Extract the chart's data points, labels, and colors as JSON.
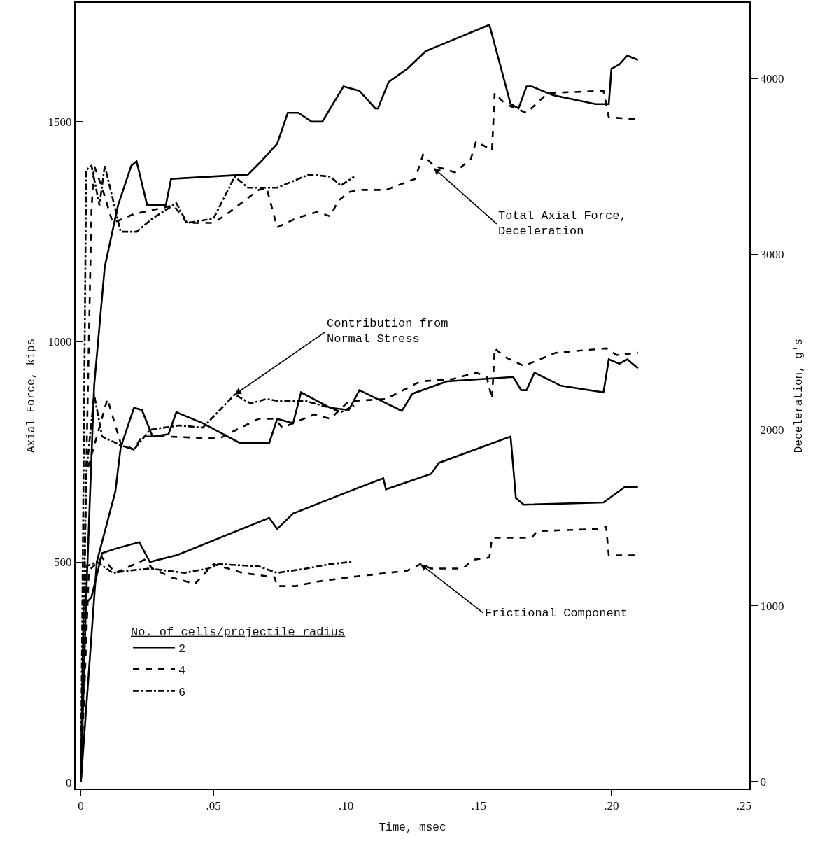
{
  "chart_data": {
    "type": "line",
    "xlabel": "Time, msec",
    "ylabel": "Axial Force, kips",
    "y2label": "Deceleration, g's",
    "xlim": [
      -0.002,
      0.252
    ],
    "xticks": [
      0,
      {
        "value": 0.05,
        "label": ".05"
      },
      {
        "value": 0.1,
        "label": ".10"
      },
      {
        "value": 0.15,
        "label": ".15"
      },
      {
        "value": 0.2,
        "label": ".20"
      },
      {
        "value": 0.25,
        "label": ".25"
      }
    ],
    "ylim": [
      -15,
      1770
    ],
    "yticks": [
      0,
      500,
      1000,
      1500
    ],
    "y2lim": [
      -40,
      4430
    ],
    "y2ticks": [
      0,
      1000,
      2000,
      3000,
      4000
    ],
    "legend": "bottom left",
    "legend_title": "No. of cells/projectile radius",
    "series": [
      {
        "name": "2",
        "color": "#000000",
        "line_style": "solid",
        "x": [
          0,
          0.002,
          0.005,
          0.009,
          0.014,
          0.019,
          0.021,
          0.025,
          0.032,
          0.034,
          0.063,
          0.068,
          0.074,
          0.078,
          0.082,
          0.087,
          0.091,
          0.099,
          0.105,
          0.111,
          0.112,
          0.116,
          0.123,
          0.13,
          0.134,
          0.142,
          0.15,
          0.154,
          0.162,
          0.165,
          0.168,
          0.17,
          0.178,
          0.194,
          0.199,
          0.2,
          0.203,
          0.206,
          0.21
        ],
        "values": [
          0,
          420,
          900,
          1170,
          1310,
          1400,
          1410,
          1310,
          1310,
          1370,
          1380,
          1410,
          1450,
          1520,
          1520,
          1500,
          1500,
          1580,
          1570,
          1530,
          1530,
          1590,
          1620,
          1660,
          1670,
          1690,
          1710,
          1720,
          1540,
          1530,
          1580,
          1580,
          1560,
          1540,
          1540,
          1620,
          1630,
          1650,
          1640
        ]
      },
      {
        "name": "4",
        "color": "#000000",
        "line_style": "dashed",
        "x": [
          0,
          0.002,
          0.004,
          0.005,
          0.008,
          0.012,
          0.02,
          0.035,
          0.04,
          0.05,
          0.055,
          0.067,
          0.07,
          0.074,
          0.081,
          0.089,
          0.094,
          0.097,
          0.101,
          0.105,
          0.115,
          0.126,
          0.129,
          0.133,
          0.141,
          0.147,
          0.149,
          0.155,
          0.156,
          0.16,
          0.168,
          0.176,
          0.197,
          0.199,
          0.21
        ],
        "values": [
          0,
          700,
          1300,
          1400,
          1350,
          1270,
          1290,
          1310,
          1270,
          1270,
          1290,
          1345,
          1350,
          1260,
          1280,
          1295,
          1285,
          1320,
          1340,
          1345,
          1345,
          1370,
          1425,
          1400,
          1385,
          1415,
          1455,
          1435,
          1565,
          1540,
          1520,
          1565,
          1570,
          1510,
          1505
        ]
      },
      {
        "name": "6",
        "color": "#000000",
        "line_style": "dashdot",
        "x": [
          0,
          0.001,
          0.002,
          0.004,
          0.007,
          0.009,
          0.015,
          0.021,
          0.027,
          0.036,
          0.04,
          0.05,
          0.058,
          0.063,
          0.074,
          0.086,
          0.094,
          0.098,
          0.103
        ],
        "values": [
          0,
          700,
          1390,
          1400,
          1310,
          1400,
          1250,
          1250,
          1280,
          1315,
          1270,
          1280,
          1375,
          1350,
          1350,
          1380,
          1375,
          1355,
          1375
        ]
      },
      {
        "color": "#000000",
        "line_style": "solid",
        "x": [
          0,
          0.006,
          0.013,
          0.015,
          0.02,
          0.023,
          0.027,
          0.033,
          0.036,
          0.046,
          0.06,
          0.071,
          0.074,
          0.08,
          0.083,
          0.094,
          0.101,
          0.105,
          0.121,
          0.125,
          0.138,
          0.163,
          0.166,
          0.168,
          0.171,
          0.181,
          0.197,
          0.199,
          0.203,
          0.206,
          0.21
        ],
        "values": [
          0,
          500,
          660,
          760,
          850,
          845,
          785,
          790,
          840,
          815,
          770,
          770,
          825,
          815,
          885,
          850,
          845,
          890,
          843,
          882,
          910,
          920,
          890,
          890,
          930,
          900,
          885,
          960,
          950,
          960,
          940
        ]
      },
      {
        "color": "#000000",
        "line_style": "dashed",
        "x": [
          0,
          0.002,
          0.01,
          0.015,
          0.02,
          0.023,
          0.032,
          0.052,
          0.067,
          0.073,
          0.076,
          0.088,
          0.094,
          0.101,
          0.115,
          0.128,
          0.14,
          0.149,
          0.153,
          0.155,
          0.156,
          0.16,
          0.167,
          0.179,
          0.198,
          0.202,
          0.21
        ],
        "values": [
          0,
          700,
          870,
          770,
          755,
          785,
          785,
          780,
          825,
          825,
          805,
          835,
          825,
          865,
          870,
          910,
          915,
          930,
          920,
          870,
          985,
          965,
          945,
          975,
          985,
          970,
          975
        ]
      },
      {
        "color": "#000000",
        "line_style": "dashdot",
        "x": [
          0,
          0.002,
          0.005,
          0.008,
          0.015,
          0.02,
          0.026,
          0.037,
          0.046,
          0.058,
          0.064,
          0.07,
          0.075,
          0.085,
          0.094,
          0.098,
          0.103
        ],
        "values": [
          0,
          700,
          880,
          785,
          765,
          755,
          800,
          810,
          805,
          880,
          860,
          870,
          865,
          865,
          850,
          840,
          855
        ]
      },
      {
        "color": "#000000",
        "line_style": "solid",
        "x": [
          0,
          0.001,
          0.004,
          0.008,
          0.013,
          0.022,
          0.026,
          0.036,
          0.071,
          0.074,
          0.08,
          0.101,
          0.114,
          0.115,
          0.132,
          0.135,
          0.162,
          0.164,
          0.167,
          0.197,
          0.205,
          0.21
        ],
        "values": [
          0,
          400,
          420,
          520,
          530,
          545,
          500,
          515,
          600,
          575,
          610,
          660,
          690,
          665,
          700,
          725,
          785,
          645,
          630,
          635,
          670,
          670
        ]
      },
      {
        "color": "#000000",
        "line_style": "dashed",
        "x": [
          0,
          0.003,
          0.008,
          0.013,
          0.024,
          0.027,
          0.034,
          0.043,
          0.05,
          0.061,
          0.073,
          0.074,
          0.081,
          0.089,
          0.101,
          0.123,
          0.128,
          0.132,
          0.144,
          0.148,
          0.154,
          0.155,
          0.17,
          0.172,
          0.196,
          0.198,
          0.199,
          0.21
        ],
        "values": [
          0,
          480,
          510,
          475,
          505,
          485,
          465,
          450,
          495,
          475,
          465,
          445,
          445,
          455,
          465,
          480,
          495,
          485,
          485,
          505,
          510,
          555,
          555,
          570,
          575,
          580,
          515,
          515
        ]
      },
      {
        "color": "#000000",
        "line_style": "dashdot",
        "x": [
          0,
          0.002,
          0.006,
          0.012,
          0.018,
          0.026,
          0.039,
          0.048,
          0.052,
          0.067,
          0.074,
          0.085,
          0.094,
          0.102
        ],
        "values": [
          0,
          490,
          500,
          475,
          480,
          485,
          475,
          485,
          495,
          490,
          475,
          485,
          495,
          500
        ]
      }
    ],
    "annotations": [
      {
        "text": "Total Axial Force,\nDeceleration",
        "x": 0.133,
        "y": 1395
      },
      {
        "text": "Contribution from\nNormal Stress",
        "x": 0.058,
        "y": 880
      },
      {
        "text": "Frictional Component",
        "x": 0.128,
        "y": 495
      }
    ]
  }
}
